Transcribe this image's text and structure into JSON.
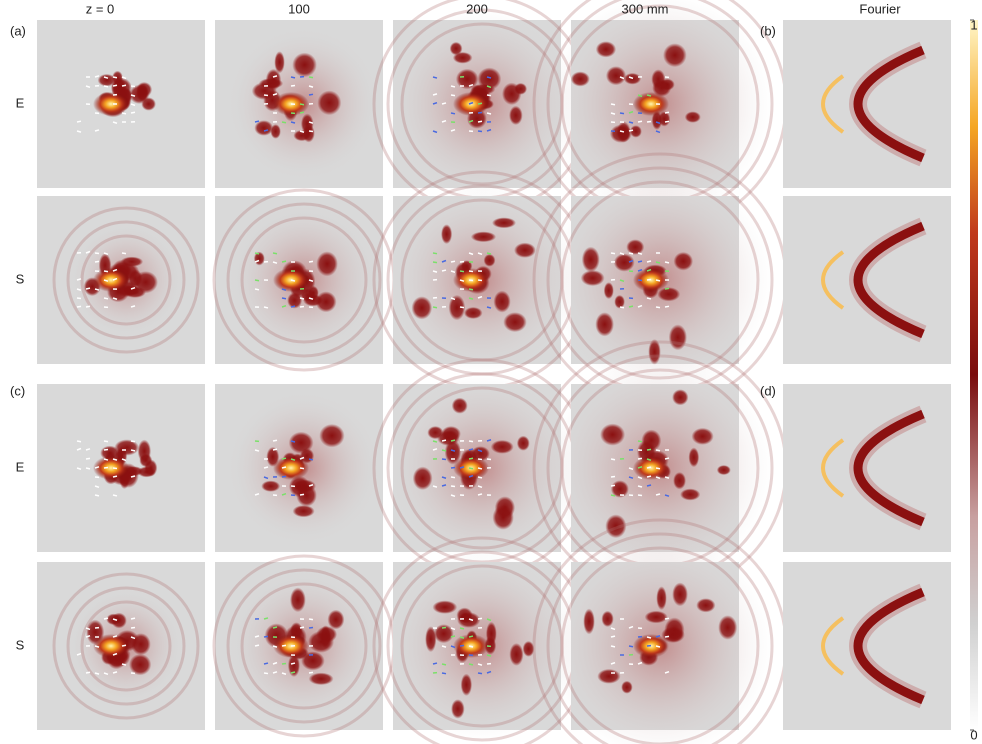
{
  "columns": [
    "z = 0",
    "100",
    "200",
    "300 mm",
    "Fourier"
  ],
  "panel_labels": [
    "(a)",
    "(b)",
    "(c)",
    "(d)"
  ],
  "row_labels": [
    "E",
    "S",
    "E",
    "S"
  ],
  "colorbar": {
    "ticks": [
      0,
      1
    ]
  }
}
